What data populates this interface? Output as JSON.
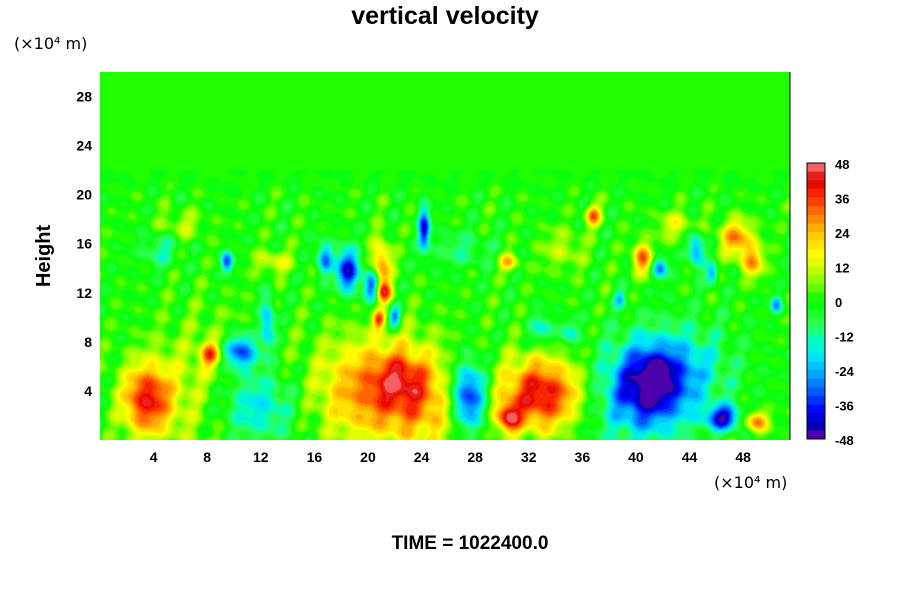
{
  "chart_data": {
    "type": "heatmap",
    "title": "vertical velocity",
    "ylabel": "Height",
    "xunit": "(×10⁴ m)",
    "yunit": "(×10⁴ m)",
    "xlim": [
      0,
      51.5
    ],
    "ylim": [
      0,
      30
    ],
    "xticks": [
      "4",
      "8",
      "12",
      "16",
      "20",
      "24",
      "28",
      "32",
      "36",
      "40",
      "44",
      "48"
    ],
    "xtick_values": [
      4,
      8,
      12,
      16,
      20,
      24,
      28,
      32,
      36,
      40,
      44,
      48
    ],
    "yticks": [
      "4",
      "8",
      "12",
      "16",
      "20",
      "24",
      "28"
    ],
    "ytick_values": [
      4,
      8,
      12,
      16,
      20,
      24,
      28
    ],
    "background_value": 0,
    "features": [
      {
        "x": 3.5,
        "y": 3.3,
        "sx": 1.3,
        "sy": 2.0,
        "v": 38
      },
      {
        "x": 8.2,
        "y": 7.0,
        "sx": 0.5,
        "sy": 0.7,
        "v": 28
      },
      {
        "x": 11.5,
        "y": 2.8,
        "sx": 2.3,
        "sy": 2.2,
        "v": -24
      },
      {
        "x": 10.5,
        "y": 7.2,
        "sx": 0.9,
        "sy": 1.0,
        "v": -36
      },
      {
        "x": 12.5,
        "y": 9.5,
        "sx": 0.4,
        "sy": 1.5,
        "v": -26
      },
      {
        "x": 21.0,
        "y": 4.0,
        "sx": 3.5,
        "sy": 3.0,
        "v": 32
      },
      {
        "x": 22.5,
        "y": 5.0,
        "sx": 1.3,
        "sy": 1.5,
        "v": 16
      },
      {
        "x": 27.5,
        "y": 3.5,
        "sx": 1.0,
        "sy": 2.0,
        "v": -44
      },
      {
        "x": 30.5,
        "y": 1.8,
        "sx": 0.6,
        "sy": 0.8,
        "v": 34
      },
      {
        "x": 33.0,
        "y": 3.7,
        "sx": 2.2,
        "sy": 2.1,
        "v": 44
      },
      {
        "x": 41.0,
        "y": 4.5,
        "sx": 2.0,
        "sy": 2.4,
        "v": -40
      },
      {
        "x": 41.5,
        "y": 5.2,
        "sx": 0.6,
        "sy": 0.9,
        "v": -14
      },
      {
        "x": 46.5,
        "y": 1.8,
        "sx": 0.9,
        "sy": 0.7,
        "v": -40
      },
      {
        "x": 49.0,
        "y": 1.5,
        "sx": 0.6,
        "sy": 0.6,
        "v": 32
      },
      {
        "x": 39.0,
        "y": 3.0,
        "sx": 3.5,
        "sy": 3.0,
        "v": -10
      },
      {
        "x": 8.0,
        "y": 4.0,
        "sx": 3.0,
        "sy": 4.0,
        "v": 12
      },
      {
        "x": 25.0,
        "y": 2.0,
        "sx": 2.0,
        "sy": 2.5,
        "v": 10
      },
      {
        "x": 44.0,
        "y": 6.0,
        "sx": 2.5,
        "sy": 2.5,
        "v": -14
      },
      {
        "x": 18.5,
        "y": 13.8,
        "sx": 0.6,
        "sy": 1.2,
        "v": -42
      },
      {
        "x": 21.0,
        "y": 14.2,
        "sx": 0.5,
        "sy": 1.5,
        "v": 30
      },
      {
        "x": 20.3,
        "y": 12.6,
        "sx": 0.4,
        "sy": 0.9,
        "v": -36
      },
      {
        "x": 21.2,
        "y": 12.0,
        "sx": 0.4,
        "sy": 0.6,
        "v": 30
      },
      {
        "x": 16.8,
        "y": 14.8,
        "sx": 0.4,
        "sy": 0.9,
        "v": -30
      },
      {
        "x": 24.2,
        "y": 17.2,
        "sx": 0.3,
        "sy": 1.2,
        "v": -40
      },
      {
        "x": 20.8,
        "y": 9.8,
        "sx": 0.3,
        "sy": 0.5,
        "v": 30
      },
      {
        "x": 22.0,
        "y": 10.0,
        "sx": 0.3,
        "sy": 0.6,
        "v": -30
      },
      {
        "x": 9.5,
        "y": 14.5,
        "sx": 0.3,
        "sy": 0.6,
        "v": -34
      },
      {
        "x": 4.5,
        "y": 15.5,
        "sx": 1.0,
        "sy": 1.0,
        "v": -12
      },
      {
        "x": 36.8,
        "y": 18.3,
        "sx": 0.4,
        "sy": 0.6,
        "v": 30
      },
      {
        "x": 40.5,
        "y": 14.8,
        "sx": 0.5,
        "sy": 0.9,
        "v": 32
      },
      {
        "x": 41.8,
        "y": 14.0,
        "sx": 0.4,
        "sy": 0.6,
        "v": -30
      },
      {
        "x": 44.5,
        "y": 15.5,
        "sx": 0.4,
        "sy": 1.0,
        "v": -30
      },
      {
        "x": 45.7,
        "y": 13.5,
        "sx": 0.3,
        "sy": 0.6,
        "v": -26
      },
      {
        "x": 47.5,
        "y": 16.5,
        "sx": 0.9,
        "sy": 1.0,
        "v": 28
      },
      {
        "x": 48.7,
        "y": 14.5,
        "sx": 0.6,
        "sy": 0.9,
        "v": 26
      },
      {
        "x": 30.5,
        "y": 14.5,
        "sx": 0.5,
        "sy": 0.5,
        "v": 22
      },
      {
        "x": 33.0,
        "y": 9.0,
        "sx": 0.6,
        "sy": 0.8,
        "v": -18
      },
      {
        "x": 35.0,
        "y": 8.8,
        "sx": 0.5,
        "sy": 0.7,
        "v": -16
      },
      {
        "x": 50.5,
        "y": 11.0,
        "sx": 0.3,
        "sy": 0.5,
        "v": -26
      },
      {
        "x": 38.8,
        "y": 11.5,
        "sx": 0.3,
        "sy": 0.5,
        "v": -20
      },
      {
        "x": 13.0,
        "y": 14.5,
        "sx": 1.0,
        "sy": 0.7,
        "v": 14
      },
      {
        "x": 27.0,
        "y": 15.5,
        "sx": 1.5,
        "sy": 1.0,
        "v": -10
      },
      {
        "x": 6.0,
        "y": 17.5,
        "sx": 1.2,
        "sy": 0.8,
        "v": 10
      },
      {
        "x": 43.0,
        "y": 17.5,
        "sx": 1.0,
        "sy": 0.8,
        "v": 14
      },
      {
        "x": 34.5,
        "y": 15.5,
        "sx": 1.2,
        "sy": 1.2,
        "v": 10
      }
    ],
    "colorbar": {
      "ticks": [
        "48",
        "36",
        "24",
        "12",
        "0",
        "-12",
        "-24",
        "-36",
        "-48"
      ],
      "tick_values": [
        48,
        36,
        24,
        12,
        0,
        -12,
        -24,
        -36,
        -48
      ],
      "min": -48,
      "max": 48,
      "levels": 32,
      "colors": [
        "#7a00a8",
        "#0000aa",
        "#0000ff",
        "#0055ff",
        "#00a0ff",
        "#00e0ff",
        "#00ffc0",
        "#30ff50",
        "#00ff00",
        "#80ff00",
        "#d0ff00",
        "#ffff00",
        "#ffd000",
        "#ff9000",
        "#ff3000",
        "#e00000",
        "#ff8080"
      ],
      "color_stops": [
        -48,
        -44,
        -38,
        -32,
        -26,
        -20,
        -14,
        -8,
        0,
        6,
        12,
        16,
        22,
        28,
        36,
        42,
        48
      ]
    }
  },
  "footer": {
    "time_label": "TIME = 1022400.0"
  }
}
